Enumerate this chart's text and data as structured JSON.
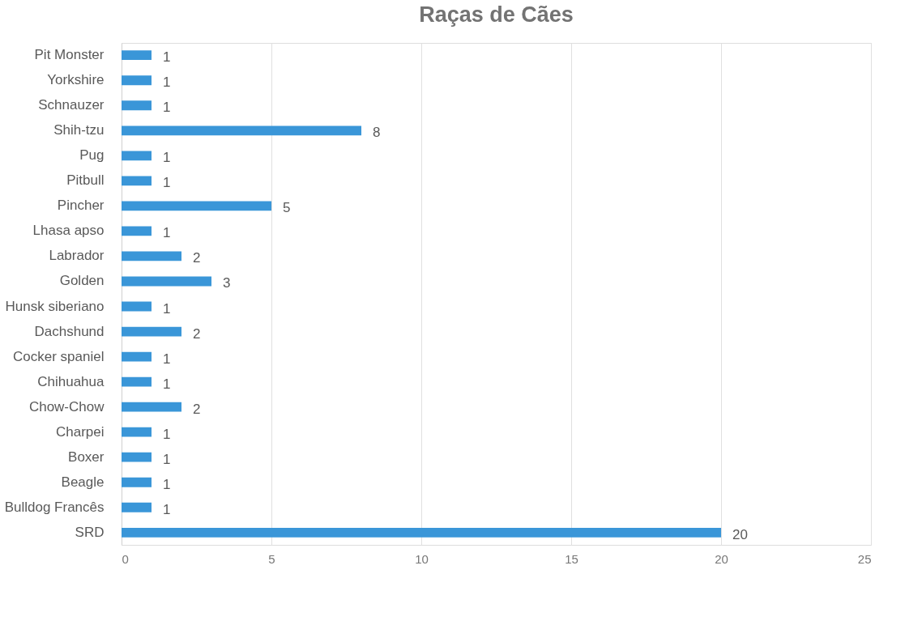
{
  "chart_data": {
    "type": "bar",
    "title": "Raças de Cães",
    "orientation": "horizontal",
    "categories": [
      "Pit Monster",
      "Yorkshire",
      "Schnauzer",
      "Shih-tzu",
      "Pug",
      "Pitbull",
      "Pincher",
      "Lhasa apso",
      "Labrador",
      "Golden",
      "Hunsk siberiano",
      "Dachshund",
      "Cocker spaniel",
      "Chihuahua",
      "Chow-Chow",
      "Charpei",
      "Boxer",
      "Beagle",
      "Bulldog Francês",
      "SRD"
    ],
    "values": [
      1,
      1,
      1,
      8,
      1,
      1,
      5,
      1,
      2,
      3,
      1,
      2,
      1,
      1,
      2,
      1,
      1,
      1,
      1,
      20
    ],
    "color": "#3a96d8",
    "xlim": [
      0,
      25
    ],
    "xticks": [
      0,
      5,
      10,
      15,
      20,
      25
    ],
    "grid": "x",
    "data_labels": true
  }
}
